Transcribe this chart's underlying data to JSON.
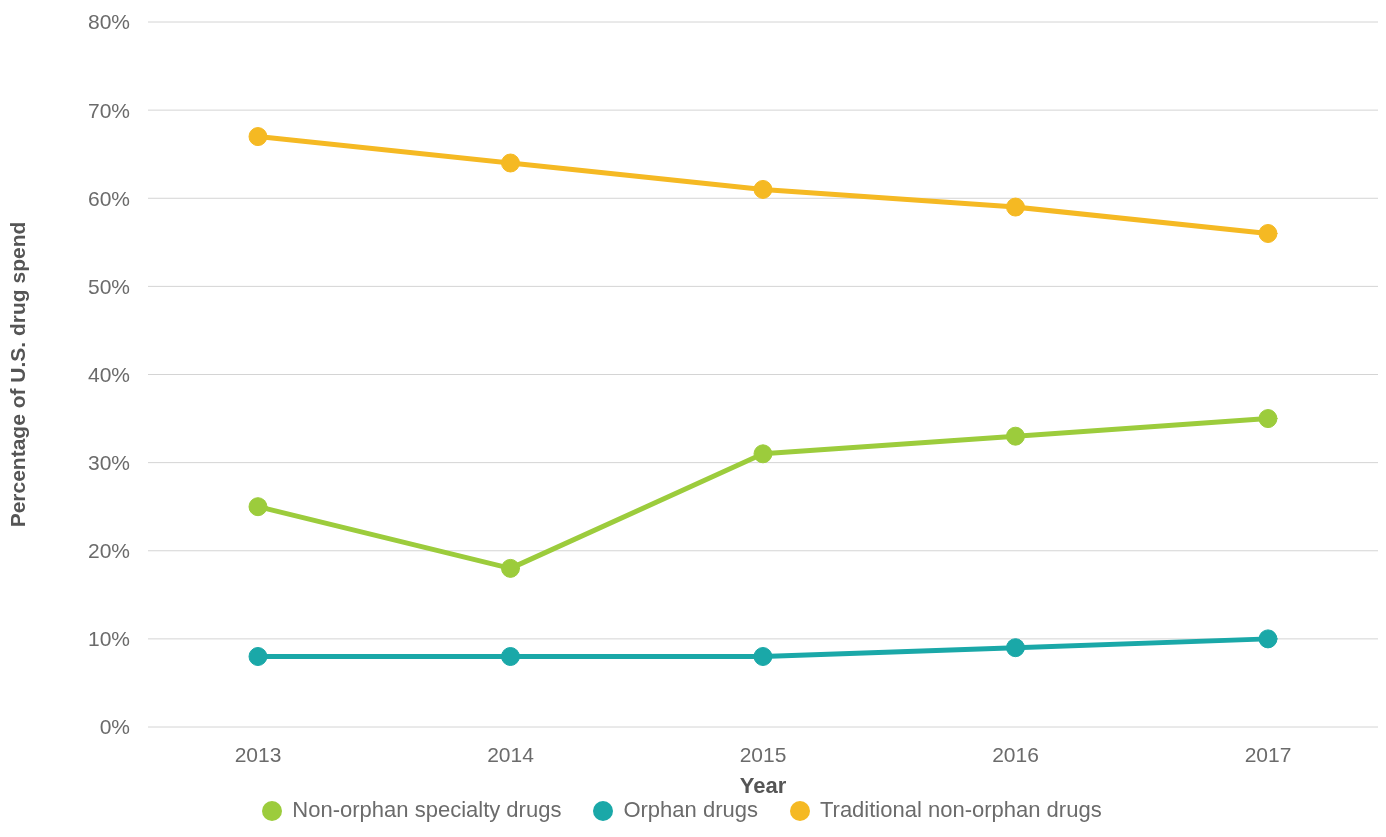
{
  "chart_data": {
    "type": "line",
    "xlabel": "Year",
    "ylabel": "Percentage of U.S. drug spend",
    "categories": [
      "2013",
      "2014",
      "2015",
      "2016",
      "2017"
    ],
    "series": [
      {
        "name": "Traditional non-orphan drugs",
        "color": "#f5b923",
        "values": [
          67,
          64,
          61,
          59,
          56
        ]
      },
      {
        "name": "Non-orphan specialty drugs",
        "color": "#9ccc3c",
        "values": [
          25,
          18,
          31,
          33,
          35
        ]
      },
      {
        "name": "Orphan drugs",
        "color": "#1aa8a8",
        "values": [
          8,
          8,
          8,
          9,
          10
        ]
      }
    ],
    "ylim": [
      0,
      80
    ],
    "yticks": [
      {
        "value": 0,
        "label": "0%"
      },
      {
        "value": 10,
        "label": "10%"
      },
      {
        "value": 20,
        "label": "20%"
      },
      {
        "value": 30,
        "label": "30%"
      },
      {
        "value": 40,
        "label": "40%"
      },
      {
        "value": 50,
        "label": "50%"
      },
      {
        "value": 60,
        "label": "60%"
      },
      {
        "value": 70,
        "label": "70%"
      },
      {
        "value": 80,
        "label": "80%"
      }
    ],
    "grid": "y",
    "legend": "bottom",
    "marker": "circle",
    "line_style": "solid"
  }
}
